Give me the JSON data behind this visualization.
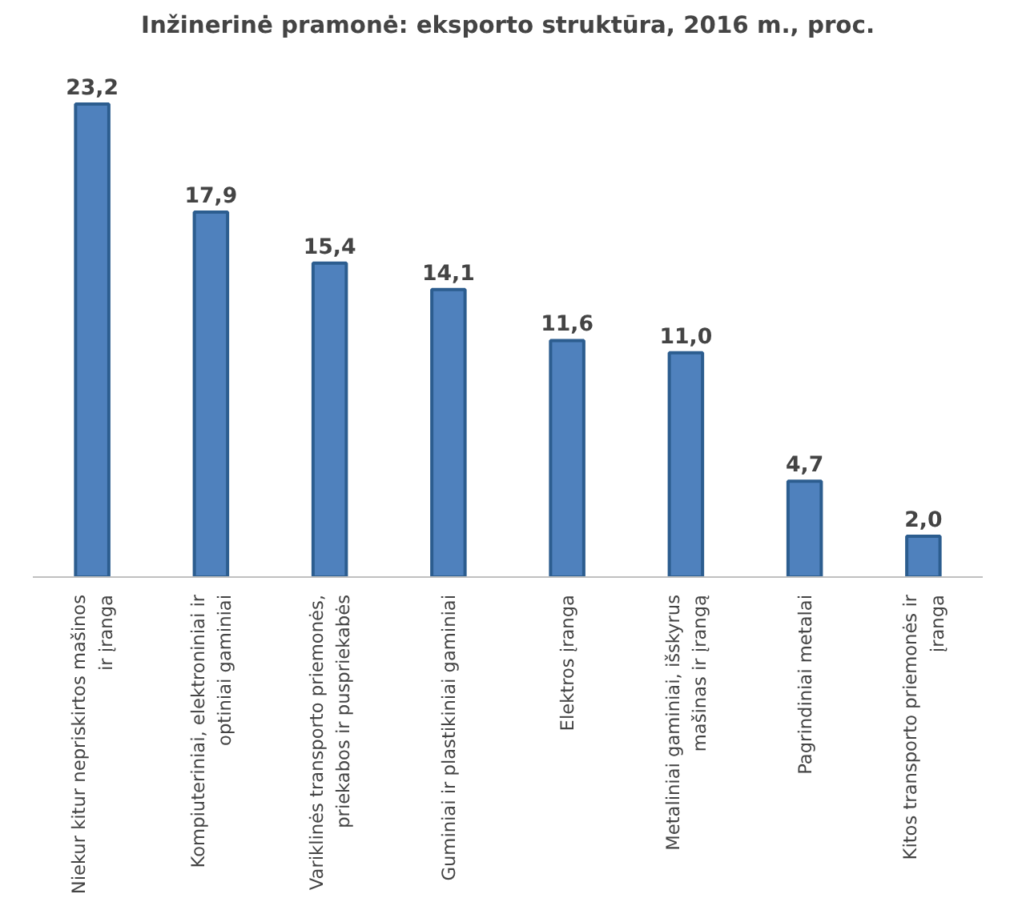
{
  "chart_data": {
    "type": "bar",
    "title": "Inžinerinė pramonė: eksporto struktūra, 2016 m., proc.",
    "categories": [
      "Niekur kitur nepriskirtos mašinos ir įranga",
      "Kompiuteriniai, elektroniniai ir optiniai gaminiai",
      "Variklinės transporto priemonės, priekabos ir puspriekabės",
      "Guminiai ir plastikiniai gaminiai",
      "Elektros įranga",
      "Metaliniai gaminiai, išskyrus mašinas ir įrangą",
      "Pagrindiniai metalai",
      "Kitos transporto priemonės ir įranga"
    ],
    "values": [
      23.2,
      17.9,
      15.4,
      14.1,
      11.6,
      11.0,
      4.7,
      2.0
    ],
    "value_labels": [
      "23,2",
      "17,9",
      "15,4",
      "14,1",
      "11,6",
      "11,0",
      "4,7",
      "2,0"
    ],
    "color": "#4f81bd",
    "grid": false
  }
}
